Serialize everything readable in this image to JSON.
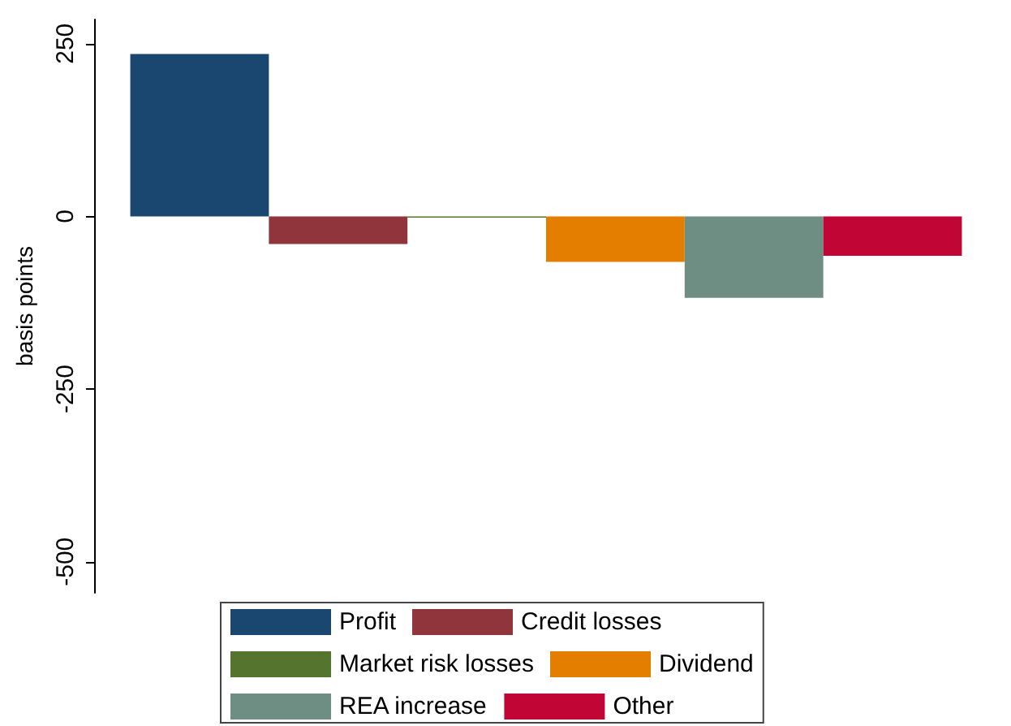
{
  "chart_data": {
    "type": "bar",
    "ylabel": "basis points",
    "categories": [
      null
    ],
    "series": [
      {
        "name": "Profit",
        "color": "#1a476f",
        "values": [
          235
        ]
      },
      {
        "name": "Credit losses",
        "color": "#90353b",
        "values": [
          -40
        ]
      },
      {
        "name": "Market risk losses",
        "color": "#55752f",
        "values": [
          -2
        ]
      },
      {
        "name": "Dividend",
        "color": "#e37e00",
        "values": [
          -66
        ]
      },
      {
        "name": "REA increase",
        "color": "#6e8e84",
        "values": [
          -118
        ]
      },
      {
        "name": "Other",
        "color": "#c10534",
        "values": [
          -57
        ]
      }
    ],
    "ylim": [
      -545,
      285
    ],
    "yticks": [
      -500,
      -250,
      0,
      250
    ],
    "grid": false,
    "legend": "bottom",
    "tick_labels": "y"
  }
}
